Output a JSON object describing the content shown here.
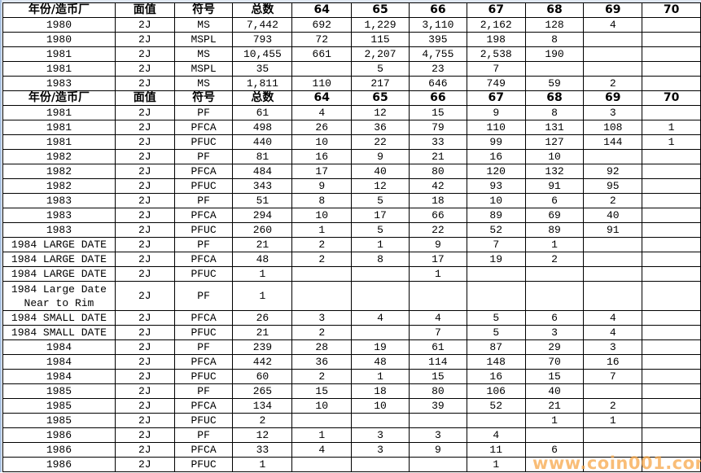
{
  "header": [
    "年份/造币厂",
    "面值",
    "符号",
    "总数",
    "64",
    "65",
    "66",
    "67",
    "68",
    "69",
    "70"
  ],
  "block1": [
    [
      "1980",
      "2J",
      "MS",
      "7,442",
      "692",
      "1,229",
      "3,110",
      "2,162",
      "128",
      "4",
      ""
    ],
    [
      "1980",
      "2J",
      "MSPL",
      "793",
      "72",
      "115",
      "395",
      "198",
      "8",
      "",
      ""
    ],
    [
      "1981",
      "2J",
      "MS",
      "10,455",
      "661",
      "2,207",
      "4,755",
      "2,538",
      "190",
      "",
      ""
    ],
    [
      "1981",
      "2J",
      "MSPL",
      "35",
      "",
      "5",
      "23",
      "7",
      "",
      "",
      ""
    ],
    [
      "1983",
      "2J",
      "MS",
      "1,811",
      "110",
      "217",
      "646",
      "749",
      "59",
      "2",
      ""
    ]
  ],
  "block2": [
    [
      "1981",
      "2J",
      "PF",
      "61",
      "4",
      "12",
      "15",
      "9",
      "8",
      "3",
      ""
    ],
    [
      "1981",
      "2J",
      "PFCA",
      "498",
      "26",
      "36",
      "79",
      "110",
      "131",
      "108",
      "1"
    ],
    [
      "1981",
      "2J",
      "PFUC",
      "440",
      "10",
      "22",
      "33",
      "99",
      "127",
      "144",
      "1"
    ],
    [
      "1982",
      "2J",
      "PF",
      "81",
      "16",
      "9",
      "21",
      "16",
      "10",
      "",
      ""
    ],
    [
      "1982",
      "2J",
      "PFCA",
      "484",
      "17",
      "40",
      "80",
      "120",
      "132",
      "92",
      ""
    ],
    [
      "1982",
      "2J",
      "PFUC",
      "343",
      "9",
      "12",
      "42",
      "93",
      "91",
      "95",
      ""
    ],
    [
      "1983",
      "2J",
      "PF",
      "51",
      "8",
      "5",
      "18",
      "10",
      "6",
      "2",
      ""
    ],
    [
      "1983",
      "2J",
      "PFCA",
      "294",
      "10",
      "17",
      "66",
      "89",
      "69",
      "40",
      ""
    ],
    [
      "1983",
      "2J",
      "PFUC",
      "260",
      "1",
      "5",
      "22",
      "52",
      "89",
      "91",
      ""
    ],
    [
      "1984 LARGE DATE",
      "2J",
      "PF",
      "21",
      "2",
      "1",
      "9",
      "7",
      "1",
      "",
      ""
    ],
    [
      "1984 LARGE DATE",
      "2J",
      "PFCA",
      "48",
      "2",
      "8",
      "17",
      "19",
      "2",
      "",
      ""
    ],
    [
      "1984 LARGE DATE",
      "2J",
      "PFUC",
      "1",
      "",
      "",
      "1",
      "",
      "",
      "",
      ""
    ],
    [
      "1984 Large Date Near to Rim",
      "2J",
      "PF",
      "1",
      "",
      "",
      "",
      "",
      "",
      "",
      ""
    ],
    [
      "1984 SMALL DATE",
      "2J",
      "PFCA",
      "26",
      "3",
      "4",
      "4",
      "5",
      "6",
      "4",
      ""
    ],
    [
      "1984 SMALL DATE",
      "2J",
      "PFUC",
      "21",
      "2",
      "",
      "7",
      "5",
      "3",
      "4",
      ""
    ],
    [
      "1984",
      "2J",
      "PF",
      "239",
      "28",
      "19",
      "61",
      "87",
      "29",
      "3",
      ""
    ],
    [
      "1984",
      "2J",
      "PFCA",
      "442",
      "36",
      "48",
      "114",
      "148",
      "70",
      "16",
      ""
    ],
    [
      "1984",
      "2J",
      "PFUC",
      "60",
      "2",
      "1",
      "15",
      "16",
      "15",
      "7",
      ""
    ],
    [
      "1985",
      "2J",
      "PF",
      "265",
      "15",
      "18",
      "80",
      "106",
      "40",
      "",
      ""
    ],
    [
      "1985",
      "2J",
      "PFCA",
      "134",
      "10",
      "10",
      "39",
      "52",
      "21",
      "2",
      ""
    ],
    [
      "1985",
      "2J",
      "PFUC",
      "2",
      "",
      "",
      "",
      "",
      "1",
      "1",
      ""
    ],
    [
      "1986",
      "2J",
      "PF",
      "12",
      "1",
      "3",
      "3",
      "4",
      "",
      "",
      ""
    ],
    [
      "1986",
      "2J",
      "PFCA",
      "33",
      "4",
      "3",
      "9",
      "11",
      "6",
      "",
      ""
    ],
    [
      "1986",
      "2J",
      "PFUC",
      "1",
      "",
      "",
      "",
      "1",
      "",
      "",
      ""
    ]
  ],
  "watermark": "www.coin001.com"
}
